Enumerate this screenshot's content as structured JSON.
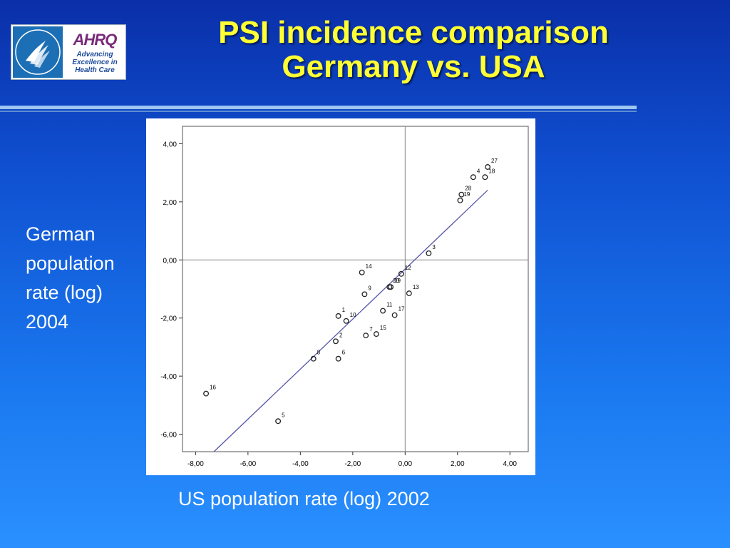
{
  "header": {
    "title_line1": "PSI incidence comparison",
    "title_line2": "Germany vs. USA",
    "logo_text": "AHRQ",
    "logo_tagline": [
      "Advancing",
      "Excellence in",
      "Health Care"
    ]
  },
  "labels": {
    "y_axis": [
      "German",
      "population",
      "rate (log)",
      "2004"
    ],
    "x_axis": "US population rate (log) 2002"
  },
  "colors": {
    "title": "#ffff33",
    "background_top": "#0a2fa8",
    "background_bottom": "#2a90ff",
    "regression_line": "#5555aa"
  },
  "chart_data": {
    "type": "scatter",
    "title": "",
    "xlabel": "US population rate (log) 2002",
    "ylabel": "German population rate (log) 2004",
    "xlim": [
      -8.5,
      4.7
    ],
    "ylim": [
      -6.6,
      4.6
    ],
    "xticks": [
      -8,
      -6,
      -4,
      -2,
      0,
      2,
      4
    ],
    "yticks": [
      -6,
      -4,
      -2,
      0,
      2,
      4
    ],
    "xtick_labels": [
      "-8,00",
      "-6,00",
      "-4,00",
      "-2,00",
      "0,00",
      "2,00",
      "4,00"
    ],
    "ytick_labels": [
      "-6,00",
      "-4,00",
      "-2,00",
      "0,00",
      "2,00",
      "4,00"
    ],
    "reference_lines": {
      "x": 0,
      "y": 0
    },
    "fit_line": {
      "x": [
        -7.3,
        3.15
      ],
      "y": [
        -6.6,
        2.4
      ]
    },
    "points": [
      {
        "label": "1",
        "x": -2.55,
        "y": -1.93
      },
      {
        "label": "2",
        "x": -2.65,
        "y": -2.8
      },
      {
        "label": "3",
        "x": 0.9,
        "y": 0.23
      },
      {
        "label": "4",
        "x": 2.6,
        "y": 2.85
      },
      {
        "label": "5",
        "x": -4.85,
        "y": -5.55
      },
      {
        "label": "6",
        "x": -2.55,
        "y": -3.4
      },
      {
        "label": "7",
        "x": -1.5,
        "y": -2.6
      },
      {
        "label": "8",
        "x": -3.5,
        "y": -3.4
      },
      {
        "label": "9",
        "x": -1.55,
        "y": -1.18
      },
      {
        "label": "10",
        "x": -2.25,
        "y": -2.1
      },
      {
        "label": "11",
        "x": -0.85,
        "y": -1.75
      },
      {
        "label": "12",
        "x": -0.15,
        "y": -0.48
      },
      {
        "label": "13",
        "x": 0.15,
        "y": -1.15
      },
      {
        "label": "14",
        "x": -1.65,
        "y": -0.43
      },
      {
        "label": "15",
        "x": -1.1,
        "y": -2.55
      },
      {
        "label": "16",
        "x": -7.6,
        "y": -4.6
      },
      {
        "label": "17",
        "x": -0.4,
        "y": -1.9
      },
      {
        "label": "18",
        "x": 3.05,
        "y": 2.85
      },
      {
        "label": "19",
        "x": 2.1,
        "y": 2.05
      },
      {
        "label": "20",
        "x": -0.6,
        "y": -0.93
      },
      {
        "label": "27",
        "x": 3.15,
        "y": 3.2
      },
      {
        "label": "28",
        "x": 2.15,
        "y": 2.25
      },
      {
        "label": "29",
        "x": -0.55,
        "y": -0.93
      }
    ]
  }
}
